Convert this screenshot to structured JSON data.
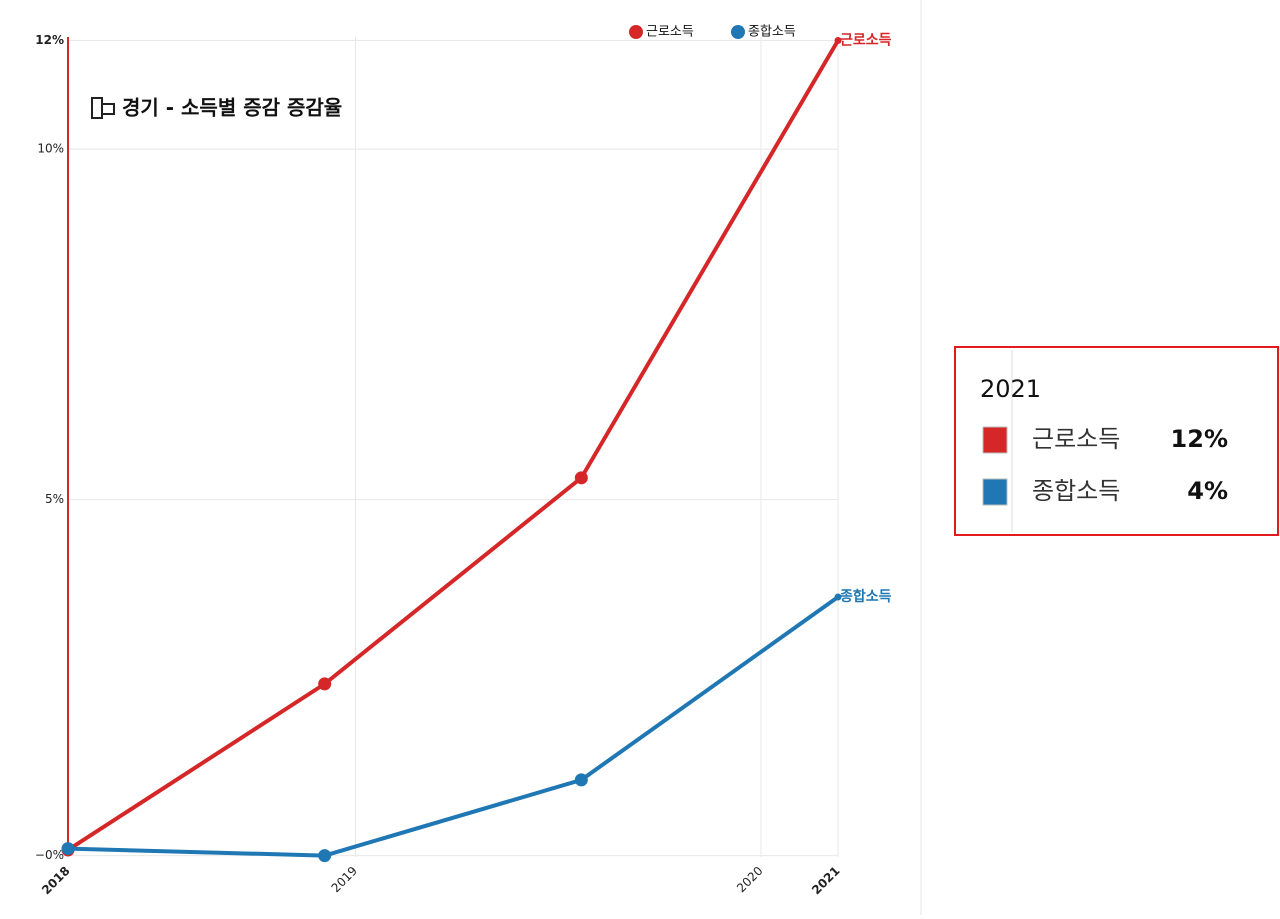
{
  "chart_data": {
    "type": "line",
    "title": "경기 - 소득별 증감 증감율",
    "x": [
      2018,
      2019,
      2020,
      2021
    ],
    "series": [
      {
        "name": "근로소득",
        "color": "#d62728",
        "values": [
          0,
          2.37,
          5.31,
          11.55
        ]
      },
      {
        "name": "종합소득",
        "color": "#1f77b4",
        "values": [
          0.02,
          -0.08,
          1.0,
          3.61
        ]
      }
    ],
    "xlim": [
      2018,
      2021
    ],
    "xticks": [
      2018,
      {
        "value": 2019.12,
        "label": "2019"
      },
      {
        "value": 2020.7,
        "label": "2020"
      },
      2021
    ],
    "ylim": [
      -0.1,
      11.6
    ],
    "yticks": [
      {
        "value": -0.08,
        "label": "−0%"
      },
      {
        "value": 5,
        "label": "5%"
      },
      {
        "value": 10,
        "label": "10%"
      },
      {
        "value": 11.55,
        "label": "12%"
      }
    ],
    "grid": true,
    "legend": "top-right"
  },
  "tooltip": {
    "title": "2021",
    "value_labels": [
      "12%",
      "4%"
    ]
  }
}
